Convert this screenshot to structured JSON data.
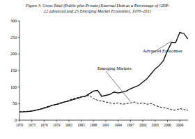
{
  "chart_data": {
    "type": "line",
    "title": "Figure 3. Gross Total (Public plus Private) External Debt as a Percentage of GDP:",
    "subtitle": "22 advanced and 25 Emerging Market Economies, 1970–2011",
    "x": [
      1970,
      1971,
      1972,
      1973,
      1974,
      1975,
      1976,
      1977,
      1978,
      1979,
      1980,
      1981,
      1982,
      1983,
      1984,
      1985,
      1986,
      1987,
      1988,
      1989,
      1990,
      1991,
      1992,
      1993,
      1994,
      1995,
      1996,
      1997,
      1998,
      1999,
      2000,
      2001,
      2002,
      2003,
      2004,
      2005,
      2006,
      2007,
      2008,
      2009,
      2010,
      2011
    ],
    "series": [
      {
        "name": "Advanced Economies",
        "color": "#000000",
        "line_style": "solid",
        "values": [
          25,
          25,
          26,
          27,
          30,
          33,
          36,
          40,
          45,
          48,
          52,
          55,
          58,
          62,
          65,
          70,
          72,
          80,
          88,
          90,
          72,
          75,
          78,
          85,
          82,
          85,
          88,
          95,
          100,
          105,
          115,
          125,
          140,
          155,
          165,
          180,
          210,
          235,
          235,
          265,
          262,
          245
        ]
      },
      {
        "name": "Emerging Markets",
        "color": "#000000",
        "line_style": "dashed",
        "values": [
          25,
          26,
          27,
          28,
          30,
          33,
          38,
          42,
          45,
          47,
          50,
          55,
          60,
          65,
          68,
          70,
          72,
          75,
          65,
          60,
          58,
          55,
          52,
          50,
          52,
          48,
          50,
          52,
          55,
          50,
          52,
          48,
          50,
          45,
          40,
          38,
          35,
          32,
          30,
          35,
          32,
          30
        ]
      }
    ],
    "xlim": [
      1970,
      2011
    ],
    "xticks": [
      1970,
      1973,
      1976,
      1979,
      1982,
      1985,
      1988,
      1991,
      1994,
      1997,
      2000,
      2003,
      2006,
      2009
    ],
    "ylim": [
      0,
      300
    ],
    "yticks": [
      0,
      50,
      100,
      150,
      200,
      250,
      300
    ],
    "grid": false
  }
}
